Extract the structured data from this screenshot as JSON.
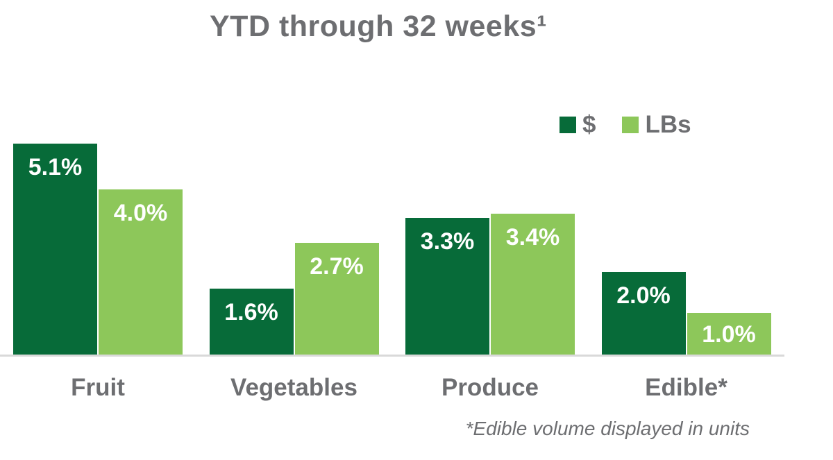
{
  "title": "YTD through 32 weeks¹",
  "footnote": "*Edible volume displayed in units",
  "colors": {
    "dollars_green": "#076b39",
    "lbs_green": "#8dc75a",
    "text_gray": "#6d6e71",
    "axis_gray": "#d9d9d9",
    "bar_label_white": "#ffffff"
  },
  "chart_data": {
    "type": "bar",
    "title": "YTD through 32 weeks¹",
    "categories": [
      "Fruit",
      "Vegetables",
      "Produce",
      "Edible*"
    ],
    "series": [
      {
        "name": "$",
        "color": "#076b39",
        "values": [
          5.1,
          1.6,
          3.3,
          2.0
        ],
        "labels": [
          "5.1%",
          "1.6%",
          "3.3%",
          "2.0%"
        ]
      },
      {
        "name": "LBs",
        "color": "#8dc75a",
        "values": [
          4.0,
          2.7,
          3.4,
          1.0
        ],
        "labels": [
          "4.0%",
          "2.7%",
          "3.4%",
          "1.0%"
        ]
      }
    ],
    "value_unit": "%",
    "ylim": [
      0,
      5.5
    ],
    "grid": false,
    "legend_position": "top-right",
    "annotations": [
      "*Edible volume displayed in units"
    ]
  }
}
